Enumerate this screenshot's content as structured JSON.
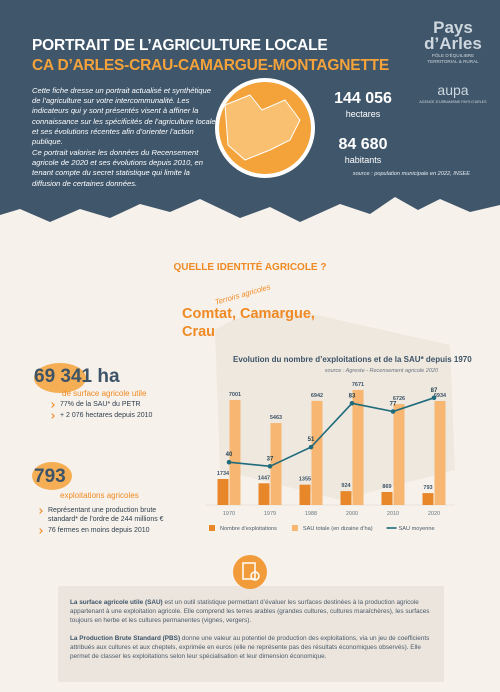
{
  "header": {
    "title": "PORTRAIT DE L’AGRICULTURE LOCALE",
    "subtitle": "CA D’ARLES-CRAU-CAMARGUE-MONTAGNETTE",
    "logo_pays": "Pays d’Arles",
    "logo_pays_tagline": "PÔLE D’ÉQUILIBRE TERRITORIAL & RURAL",
    "logo_aupa": "aupa",
    "logo_aupa_tagline": "AGENCE D’URBANISME PAYS D’ARLES"
  },
  "intro": {
    "paragraphs": [
      "Cette fiche dresse un portrait actualisé et synthétique de l’agriculture sur votre intercommunalité. Les indicateurs qui y sont présentés visent à affiner la connaissance sur les spécificités de l’agriculture locale et ses évolutions récentes afin d’orienter l’action publique.",
      "Ce portrait valorise les données du Recensement agricole de 2020 et ses évolutions depuis 2010, en tenant compte du secret statistique qui limite la diffusion de certaines données."
    ]
  },
  "key_figures": {
    "area": "144 056",
    "area_unit": "hectares",
    "population": "84 680",
    "population_unit": "habitants",
    "source": "source : population municipale en 2022, INSEE"
  },
  "section": {
    "title": "QUELLE IDENTITÉ AGRICOLE ?",
    "terroirs_label": "Terroirs agricoles",
    "terroirs": "Comtat, Camargue, Crau"
  },
  "sau": {
    "value": "69 341 ha",
    "label": "de surface agricole utile",
    "bullets": [
      "77% de la SAU* du PETR",
      "+ 2 076 hectares depuis 2010"
    ]
  },
  "farms": {
    "value": "793",
    "label": "exploitations agricoles",
    "bullets": [
      "Représentant une production brute standard* de l’ordre de 244 millions €",
      "76 fermes en moins depuis 2010"
    ]
  },
  "chart_data": {
    "type": "bar",
    "title": "Evolution du nombre d’exploitations et de la SAU* depuis 1970",
    "source": "source : Agreste - Recensement agricole 2020",
    "categories": [
      "1970",
      "1979",
      "1988",
      "2000",
      "2010",
      "2020"
    ],
    "series": [
      {
        "name": "Nombre d’exploitations",
        "color": "#e8872a",
        "values": [
          1734,
          1447,
          1355,
          924,
          869,
          793
        ]
      },
      {
        "name": "SAU totale (en dizaine d’ha)",
        "color": "#f7b672",
        "values": [
          7001,
          5463,
          6942,
          7671,
          6726,
          6934
        ]
      },
      {
        "name": "SAU moyenne",
        "color": "#1f6b7c",
        "type": "line",
        "axis": "y2",
        "values": [
          40,
          37,
          51,
          83,
          77,
          87
        ]
      }
    ],
    "ylim": [
      0,
      8000
    ],
    "y2lim": [
      0,
      100
    ],
    "grid": false
  },
  "glossary": [
    {
      "term": "La surface agricole utile (SAU)",
      "text": " est un outil statistique permettant d’évaluer les surfaces destinées à la production agricole appartenant à une exploitation agricole. Elle comprend les terres arables (grandes cultures, cultures maraîchères), les surfaces toujours en herbe et les cultures permanentes (vignes, vergers)."
    },
    {
      "term": "La Production Brute Standard (PBS)",
      "text": " donne une valeur au potentiel de production des exploitations, via un jeu de coefficients attribués aux cultures et aux cheptels, exprimée en euros (elle ne représente pas des résultats économiques observés). Elle permet de classer les exploitations selon leur spécialisation et leur dimension économique."
    }
  ]
}
